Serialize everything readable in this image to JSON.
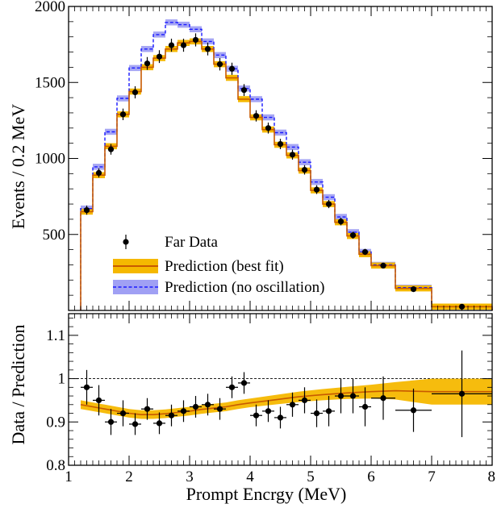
{
  "chart_data": [
    {
      "panel": "top",
      "type": "histogram",
      "title": "",
      "xlabel": "",
      "ylabel": "Events / 0.2 MeV",
      "xlim": [
        1,
        8
      ],
      "ylim": [
        0,
        2000
      ],
      "yticks": [
        500,
        1000,
        1500,
        2000
      ],
      "legend": {
        "placement": "bottom-left",
        "entries": [
          {
            "id": "data",
            "label": "Far Data",
            "marker": "point"
          },
          {
            "id": "best",
            "label": "Prediction (best fit)",
            "marker": "solid-band"
          },
          {
            "id": "noosc",
            "label": "Prediction (no oscillation)",
            "marker": "dashed-band"
          }
        ]
      },
      "bin_edges": [
        1.2,
        1.4,
        1.6,
        1.8,
        2.0,
        2.2,
        2.4,
        2.6,
        2.8,
        3.0,
        3.2,
        3.4,
        3.6,
        3.8,
        4.0,
        4.2,
        4.4,
        4.6,
        4.8,
        5.0,
        5.2,
        5.4,
        5.6,
        5.8,
        6.0,
        6.4,
        7.0,
        8.0
      ],
      "series": [
        {
          "id": "best",
          "name": "Prediction (best fit)",
          "style": "solid",
          "color": "#c85a00",
          "band_color": "#f5b800",
          "band_halfwidth": 20,
          "values": [
            650,
            890,
            1080,
            1290,
            1440,
            1600,
            1660,
            1720,
            1760,
            1770,
            1720,
            1620,
            1530,
            1390,
            1270,
            1190,
            1090,
            1020,
            920,
            790,
            700,
            580,
            490,
            370,
            295,
            145,
            25
          ]
        },
        {
          "id": "noosc",
          "name": "Prediction (no oscillation)",
          "style": "dashed",
          "color": "#1a1aff",
          "band_color": "#8080f0",
          "band_halfwidth": 20,
          "values": [
            670,
            945,
            1175,
            1395,
            1595,
            1720,
            1815,
            1895,
            1880,
            1850,
            1770,
            1680,
            1590,
            1460,
            1390,
            1270,
            1170,
            1075,
            975,
            845,
            745,
            615,
            515,
            385,
            300,
            150,
            25
          ]
        },
        {
          "id": "data",
          "name": "Far Data",
          "style": "points",
          "color": "#000000",
          "x": [
            1.3,
            1.5,
            1.7,
            1.9,
            2.1,
            2.3,
            2.5,
            2.7,
            2.9,
            3.1,
            3.3,
            3.5,
            3.7,
            3.9,
            4.1,
            4.3,
            4.5,
            4.7,
            4.9,
            5.1,
            5.3,
            5.5,
            5.7,
            5.9,
            6.2,
            6.7,
            7.5
          ],
          "y": [
            660,
            905,
            1060,
            1290,
            1435,
            1625,
            1670,
            1745,
            1745,
            1780,
            1720,
            1620,
            1590,
            1450,
            1280,
            1200,
            1095,
            1025,
            925,
            795,
            700,
            585,
            495,
            385,
            295,
            140,
            25
          ],
          "yerr": [
            30,
            30,
            35,
            38,
            40,
            42,
            42,
            43,
            43,
            43,
            42,
            41,
            40,
            39,
            37,
            36,
            34,
            33,
            31,
            29,
            27,
            25,
            23,
            20,
            18,
            12,
            5
          ]
        }
      ]
    },
    {
      "panel": "bottom",
      "type": "ratio",
      "title": "",
      "xlabel": "Prompt Encrgy (MeV)",
      "ylabel": "Data / Prediction",
      "xlim": [
        1,
        8
      ],
      "ylim": [
        0.8,
        1.15
      ],
      "xticks": [
        1,
        2,
        3,
        4,
        5,
        6,
        7,
        8
      ],
      "yticks": [
        0.8,
        0.9,
        1,
        1.1
      ],
      "ytick_labels": [
        "0.8",
        "0.9",
        "1",
        "1.1"
      ],
      "reference_line": 1,
      "band": {
        "color": "#f5b800",
        "line_color": "#c85a00",
        "x": [
          1.2,
          1.4,
          1.6,
          1.8,
          2.0,
          2.2,
          2.4,
          2.6,
          2.8,
          3.0,
          3.2,
          3.4,
          3.6,
          3.8,
          4.0,
          4.4,
          4.8,
          5.2,
          5.6,
          6.0,
          6.4,
          7.0,
          8.0
        ],
        "center": [
          0.94,
          0.935,
          0.93,
          0.925,
          0.92,
          0.917,
          0.917,
          0.919,
          0.922,
          0.925,
          0.929,
          0.932,
          0.935,
          0.94,
          0.944,
          0.951,
          0.958,
          0.963,
          0.967,
          0.97,
          0.972,
          0.97,
          0.97
        ],
        "halfwidth": [
          0.01,
          0.01,
          0.01,
          0.01,
          0.01,
          0.01,
          0.01,
          0.01,
          0.01,
          0.01,
          0.01,
          0.01,
          0.01,
          0.01,
          0.01,
          0.011,
          0.012,
          0.013,
          0.014,
          0.016,
          0.02,
          0.03,
          0.03
        ]
      },
      "points": {
        "x": [
          1.3,
          1.5,
          1.7,
          1.9,
          2.1,
          2.3,
          2.5,
          2.7,
          2.9,
          3.1,
          3.3,
          3.5,
          3.7,
          3.9,
          4.1,
          4.3,
          4.5,
          4.7,
          4.9,
          5.1,
          5.3,
          5.5,
          5.7,
          5.9,
          6.2,
          6.7,
          7.5
        ],
        "xerr": [
          0.1,
          0.1,
          0.1,
          0.1,
          0.1,
          0.1,
          0.1,
          0.1,
          0.1,
          0.1,
          0.1,
          0.1,
          0.1,
          0.1,
          0.1,
          0.1,
          0.1,
          0.1,
          0.1,
          0.1,
          0.1,
          0.1,
          0.1,
          0.1,
          0.2,
          0.3,
          0.5
        ],
        "y": [
          0.98,
          0.95,
          0.9,
          0.92,
          0.895,
          0.93,
          0.897,
          0.915,
          0.925,
          0.935,
          0.94,
          0.93,
          0.98,
          0.99,
          0.915,
          0.925,
          0.91,
          0.94,
          0.95,
          0.92,
          0.925,
          0.96,
          0.96,
          0.935,
          0.955,
          0.927,
          0.965
        ],
        "yerr": [
          0.04,
          0.035,
          0.03,
          0.03,
          0.025,
          0.025,
          0.025,
          0.025,
          0.025,
          0.025,
          0.025,
          0.025,
          0.025,
          0.025,
          0.025,
          0.025,
          0.025,
          0.028,
          0.03,
          0.032,
          0.035,
          0.04,
          0.04,
          0.045,
          0.05,
          0.05,
          0.1
        ]
      }
    }
  ]
}
